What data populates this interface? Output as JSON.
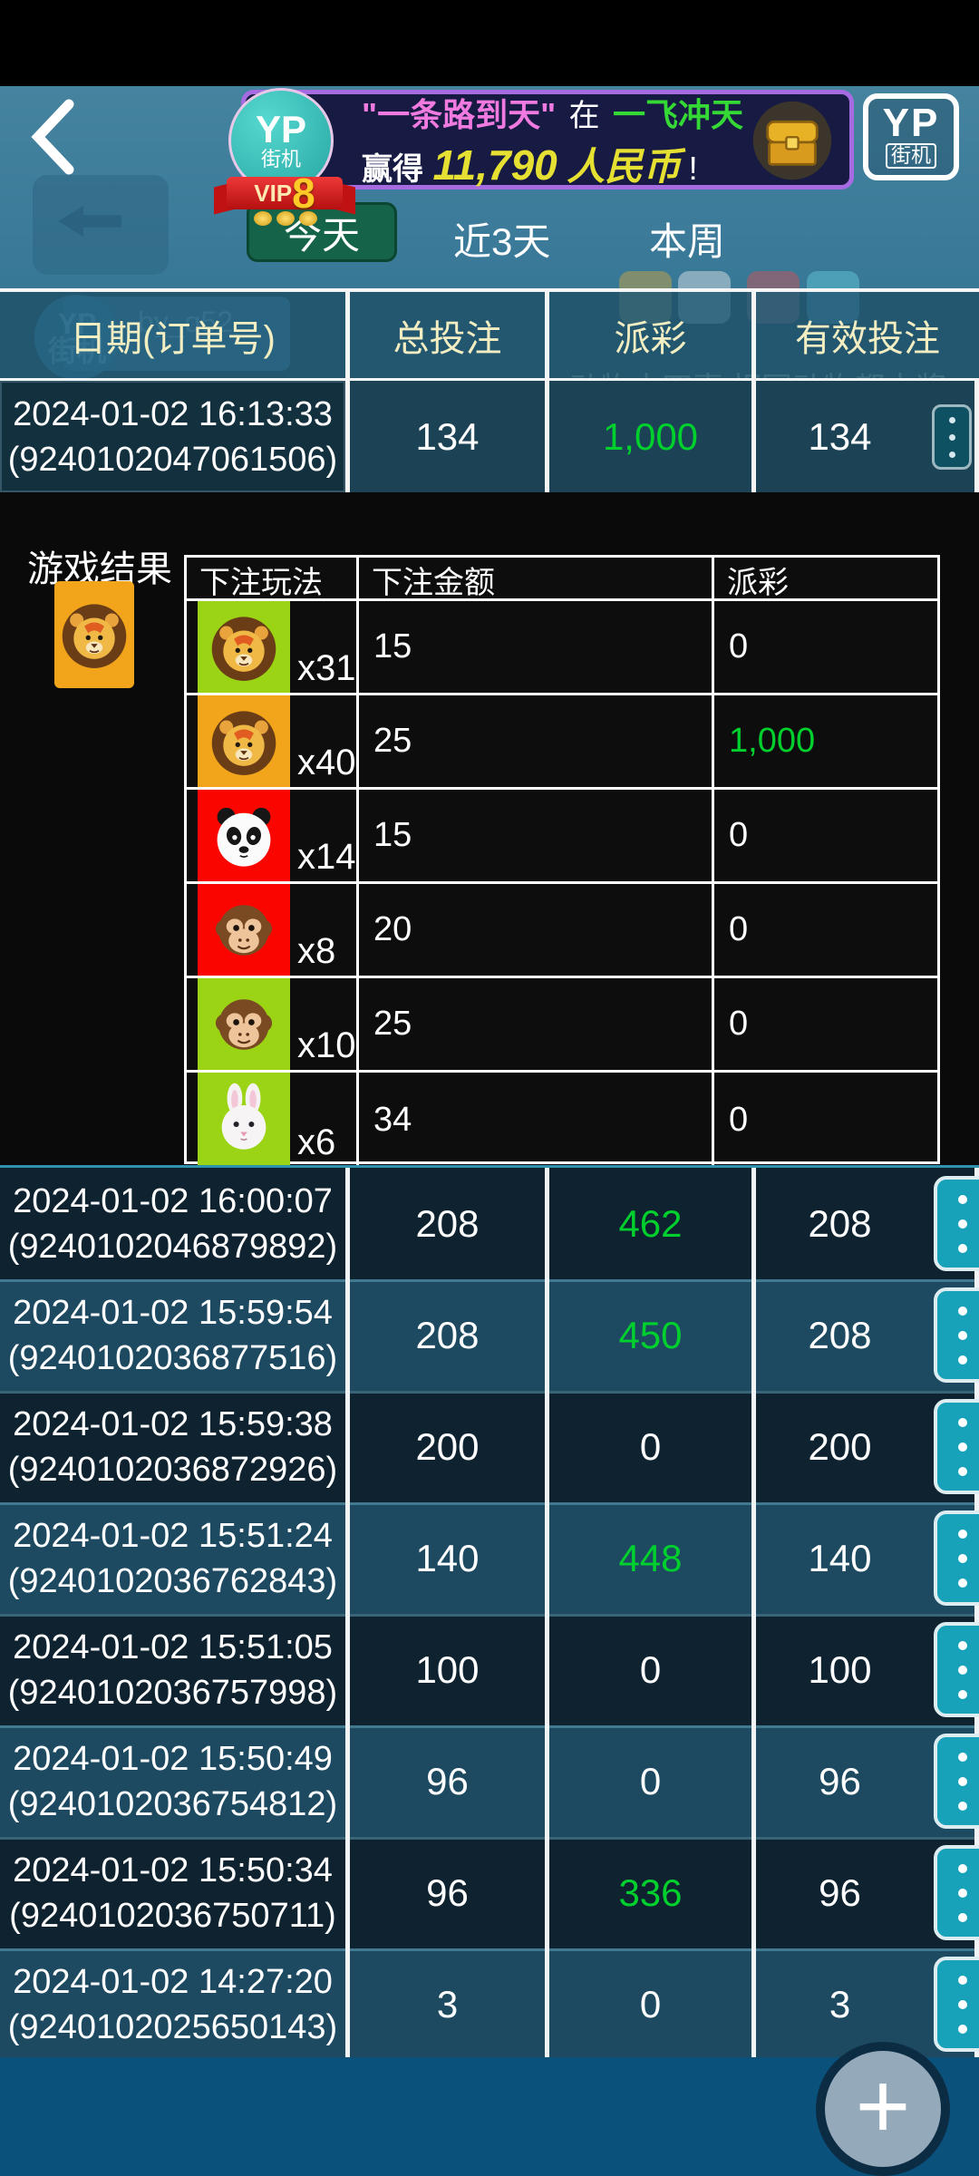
{
  "colors": {
    "win_green": "#00d02e",
    "header_text": "#f3edc2",
    "accent_teal": "#18a2ba",
    "tile_green": "#9ad414",
    "tile_orange": "#f2a51a",
    "tile_red": "#fb0500"
  },
  "icons": {
    "back": "chevron-left",
    "chest": "chest",
    "menu": "vertical-ellipsis",
    "plus": "plus"
  },
  "header": {
    "vip_badge": {
      "brand": "YP",
      "brand_sub": "街机",
      "vip_label": "VIP",
      "vip_level": "8"
    },
    "banner": {
      "quote": "\"一条路到天\"",
      "preposition": "在",
      "game_name": "一飞冲天",
      "win_verb": "赢得",
      "amount": "11,790",
      "currency": "人民币",
      "exclamation": "!"
    },
    "corner_logo": {
      "brand": "YP",
      "brand_sub": "街机"
    }
  },
  "tabs": [
    {
      "label": "今天",
      "active": true
    },
    {
      "label": "近3天",
      "active": false
    },
    {
      "label": "本周",
      "active": false
    }
  ],
  "background_hints": {
    "mini_logo": "YP",
    "mini_logo_sub": "街机",
    "player_name": "by_q52",
    "caption_left": "动物大四喜",
    "caption_right": "相同动物都中奖"
  },
  "table": {
    "headers": [
      "日期(订单号)",
      "总投注",
      "派彩",
      "有效投注"
    ]
  },
  "first_row": {
    "date": "2024-01-02 16:13:33",
    "order": "(9240102047061506)",
    "total": "134",
    "payout": "1,000",
    "win": true,
    "valid": "134"
  },
  "detail": {
    "title": "游戏结果",
    "result": {
      "animal": "lion",
      "bg": "#f2a51a"
    },
    "columns": [
      "下注玩法",
      "下注金额",
      "派彩"
    ],
    "bets": [
      {
        "animal": "lion",
        "bg": "#9ad414",
        "mult": "x31",
        "amount": "15",
        "payout": "0",
        "win": false
      },
      {
        "animal": "lion",
        "bg": "#f2a51a",
        "mult": "x40",
        "amount": "25",
        "payout": "1,000",
        "win": true
      },
      {
        "animal": "panda",
        "bg": "#fb0500",
        "mult": "x14",
        "amount": "15",
        "payout": "0",
        "win": false
      },
      {
        "animal": "monkey",
        "bg": "#fb0500",
        "mult": "x8",
        "amount": "20",
        "payout": "0",
        "win": false
      },
      {
        "animal": "monkey",
        "bg": "#9ad414",
        "mult": "x10",
        "amount": "25",
        "payout": "0",
        "win": false
      },
      {
        "animal": "rabbit",
        "bg": "#9ad414",
        "mult": "x6",
        "amount": "34",
        "payout": "0",
        "win": false
      }
    ]
  },
  "rows": [
    {
      "date": "2024-01-02 16:00:07",
      "order": "(9240102046879892)",
      "total": "208",
      "payout": "462",
      "win": true,
      "valid": "208"
    },
    {
      "date": "2024-01-02 15:59:54",
      "order": "(9240102036877516)",
      "total": "208",
      "payout": "450",
      "win": true,
      "valid": "208"
    },
    {
      "date": "2024-01-02 15:59:38",
      "order": "(9240102036872926)",
      "total": "200",
      "payout": "0",
      "win": false,
      "valid": "200"
    },
    {
      "date": "2024-01-02 15:51:24",
      "order": "(9240102036762843)",
      "total": "140",
      "payout": "448",
      "win": true,
      "valid": "140"
    },
    {
      "date": "2024-01-02 15:51:05",
      "order": "(9240102036757998)",
      "total": "100",
      "payout": "0",
      "win": false,
      "valid": "100"
    },
    {
      "date": "2024-01-02 15:50:49",
      "order": "(9240102036754812)",
      "total": "96",
      "payout": "0",
      "win": false,
      "valid": "96"
    },
    {
      "date": "2024-01-02 15:50:34",
      "order": "(9240102036750711)",
      "total": "96",
      "payout": "336",
      "win": true,
      "valid": "96"
    },
    {
      "date": "2024-01-02 14:27:20",
      "order": "(9240102025650143)",
      "total": "3",
      "payout": "0",
      "win": false,
      "valid": "3"
    }
  ],
  "fab": {
    "glyph": "+"
  }
}
